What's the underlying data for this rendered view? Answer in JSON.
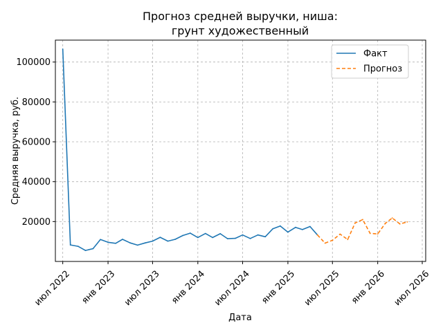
{
  "chart_data": {
    "type": "line",
    "title_lines": [
      "Прогноз средней выручки, ниша:",
      "грунт художественный"
    ],
    "xlabel": "Дата",
    "ylabel": "Средняя выручка, руб.",
    "x_range": [
      "2022-06-01",
      "2026-07-15"
    ],
    "ylim": [
      0,
      111000
    ],
    "x_ticks": [
      {
        "date": "2022-07-01",
        "label": "июл 2022"
      },
      {
        "date": "2023-01-01",
        "label": "янв 2023"
      },
      {
        "date": "2023-07-01",
        "label": "июл 2023"
      },
      {
        "date": "2024-01-01",
        "label": "янв 2024"
      },
      {
        "date": "2024-07-01",
        "label": "июл 2024"
      },
      {
        "date": "2025-01-01",
        "label": "янв 2025"
      },
      {
        "date": "2025-07-01",
        "label": "июл 2025"
      },
      {
        "date": "2026-01-01",
        "label": "янв 2026"
      },
      {
        "date": "2026-07-01",
        "label": "июл 2026"
      }
    ],
    "y_ticks": [
      {
        "value": 20000,
        "label": "20000"
      },
      {
        "value": 40000,
        "label": "40000"
      },
      {
        "value": 60000,
        "label": "60000"
      },
      {
        "value": 80000,
        "label": "80000"
      },
      {
        "value": 100000,
        "label": "100000"
      }
    ],
    "grid": true,
    "legend_position": "top-right",
    "series": [
      {
        "name": "Факт",
        "color": "#1f77b4",
        "style": "solid",
        "points": [
          [
            "2022-07-01",
            106500
          ],
          [
            "2022-08-01",
            8300
          ],
          [
            "2022-09-01",
            7600
          ],
          [
            "2022-10-01",
            5500
          ],
          [
            "2022-11-01",
            6400
          ],
          [
            "2022-12-01",
            11000
          ],
          [
            "2023-01-01",
            9600
          ],
          [
            "2023-02-01",
            9100
          ],
          [
            "2023-03-01",
            11100
          ],
          [
            "2023-04-01",
            9300
          ],
          [
            "2023-05-01",
            8200
          ],
          [
            "2023-06-01",
            9300
          ],
          [
            "2023-07-01",
            10200
          ],
          [
            "2023-08-01",
            12100
          ],
          [
            "2023-09-01",
            10200
          ],
          [
            "2023-10-01",
            11100
          ],
          [
            "2023-11-01",
            13000
          ],
          [
            "2023-12-01",
            14200
          ],
          [
            "2024-01-01",
            12000
          ],
          [
            "2024-02-01",
            14000
          ],
          [
            "2024-03-01",
            12000
          ],
          [
            "2024-04-01",
            13900
          ],
          [
            "2024-05-01",
            11400
          ],
          [
            "2024-06-01",
            11600
          ],
          [
            "2024-07-01",
            13300
          ],
          [
            "2024-08-01",
            11500
          ],
          [
            "2024-09-01",
            13300
          ],
          [
            "2024-10-01",
            12400
          ],
          [
            "2024-11-01",
            16400
          ],
          [
            "2024-12-01",
            17800
          ],
          [
            "2025-01-01",
            14700
          ],
          [
            "2025-02-01",
            17100
          ],
          [
            "2025-03-01",
            16000
          ],
          [
            "2025-04-01",
            17500
          ],
          [
            "2025-05-01",
            13300
          ]
        ]
      },
      {
        "name": "Прогноз",
        "color": "#ff7f0e",
        "style": "dashed",
        "points": [
          [
            "2025-05-01",
            13300
          ],
          [
            "2025-06-01",
            9200
          ],
          [
            "2025-07-01",
            10600
          ],
          [
            "2025-08-01",
            13700
          ],
          [
            "2025-09-01",
            11000
          ],
          [
            "2025-10-01",
            19300
          ],
          [
            "2025-11-01",
            21000
          ],
          [
            "2025-12-01",
            14100
          ],
          [
            "2026-01-01",
            13800
          ],
          [
            "2026-02-01",
            19100
          ],
          [
            "2026-03-01",
            21800
          ],
          [
            "2026-04-01",
            18800
          ],
          [
            "2026-05-01",
            19800
          ]
        ]
      }
    ]
  }
}
